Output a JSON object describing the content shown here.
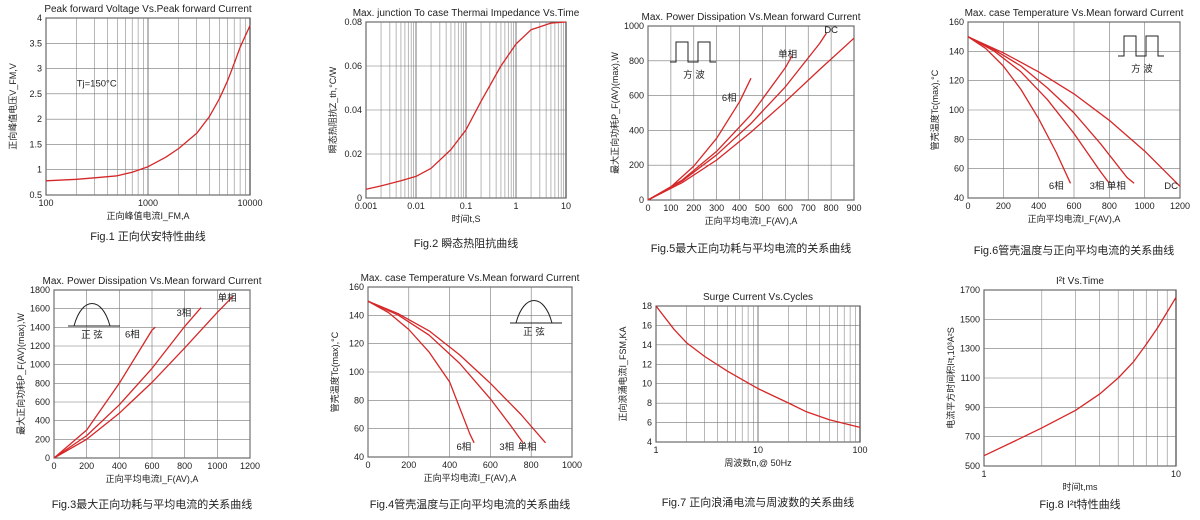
{
  "chart_data": [
    {
      "id": "fig1",
      "type": "line",
      "title": "Peak forward Voltage Vs.Peak forward Current",
      "caption": "Fig.1 正向伏安特性曲线",
      "xlabel": "正向峰值电流I_FM,A",
      "ylabel": "正向峰值电压V_FM,V",
      "xscale": "log",
      "xlim": [
        100,
        10000
      ],
      "ylim": [
        0.5,
        4
      ],
      "xticks": [
        100,
        1000,
        10000
      ],
      "yticks": [
        0.5,
        1,
        1.5,
        2,
        2.5,
        3,
        3.5,
        4
      ],
      "grid": true,
      "annotations": [
        {
          "text": "Tj=150°C",
          "x": 200,
          "y": 2.65
        }
      ],
      "series": [
        {
          "x": [
            100,
            200,
            300,
            500,
            700,
            1000,
            1500,
            2000,
            3000,
            4000,
            5000,
            6000,
            7000,
            8000,
            10000
          ],
          "y": [
            0.78,
            0.81,
            0.84,
            0.88,
            0.95,
            1.06,
            1.25,
            1.42,
            1.72,
            2.05,
            2.4,
            2.75,
            3.1,
            3.42,
            3.85
          ]
        }
      ]
    },
    {
      "id": "fig2",
      "type": "line",
      "title": "Max. junction To case Thermai Impedance Vs.Time",
      "caption": "Fig.2 瞬态热阻抗曲线",
      "xlabel": "时间t,S",
      "ylabel": "瞬态热阻抗Z_th,°C/W",
      "xscale": "log",
      "xlim": [
        0.001,
        10
      ],
      "ylim": [
        0,
        0.08
      ],
      "xticks": [
        0.001,
        0.01,
        0.1,
        1,
        10
      ],
      "yticks": [
        0,
        0.02,
        0.04,
        0.06,
        0.08
      ],
      "grid": true,
      "series": [
        {
          "x": [
            0.001,
            0.002,
            0.005,
            0.01,
            0.02,
            0.05,
            0.1,
            0.2,
            0.5,
            1,
            2,
            5,
            10
          ],
          "y": [
            0.004,
            0.0055,
            0.0078,
            0.0098,
            0.0135,
            0.022,
            0.031,
            0.044,
            0.06,
            0.07,
            0.0765,
            0.0795,
            0.08
          ]
        }
      ]
    },
    {
      "id": "fig5",
      "type": "line",
      "title": "Max. Power Dissipation Vs.Mean forward Current",
      "caption": "Fig.5最大正向功耗与平均电流的关系曲线",
      "xlabel": "正向平均电流I_F(AV),A",
      "ylabel": "最大正向功耗P_F(AV)(max),W",
      "xlim": [
        0,
        900
      ],
      "ylim": [
        0,
        1000
      ],
      "xticks": [
        0,
        100,
        200,
        300,
        400,
        500,
        600,
        700,
        800,
        900
      ],
      "yticks": [
        0,
        200,
        400,
        600,
        800,
        1000
      ],
      "grid": true,
      "inset": {
        "type": "square-wave",
        "label": "方 波"
      },
      "series": [
        {
          "name": "6相",
          "x": [
            0,
            100,
            200,
            300,
            400,
            450
          ],
          "y": [
            0,
            75,
            195,
            355,
            565,
            700
          ]
        },
        {
          "name": "单相",
          "x": [
            0,
            150,
            300,
            450,
            600,
            630
          ],
          "y": [
            0,
            115,
            280,
            490,
            760,
            830
          ]
        },
        {
          "name": "DC",
          "x": [
            0,
            150,
            300,
            450,
            600,
            750,
            780
          ],
          "y": [
            0,
            110,
            260,
            440,
            650,
            900,
            960
          ]
        },
        {
          "name": "",
          "x": [
            0,
            150,
            300,
            450,
            600,
            750,
            900
          ],
          "y": [
            0,
            100,
            230,
            390,
            565,
            750,
            930
          ]
        }
      ],
      "labels": [
        {
          "text": "6相",
          "x": 355,
          "y": 570
        },
        {
          "text": "单相",
          "x": 610,
          "y": 820
        },
        {
          "text": "DC",
          "x": 800,
          "y": 960
        }
      ]
    },
    {
      "id": "fig6",
      "type": "line",
      "title": "Max. case Temperature Vs.Mean forward Current",
      "caption": "Fig.6管壳温度与正向平均电流的关系曲线",
      "xlabel": "正向平均电流I_F(AV),A",
      "ylabel": "管壳温度Tc(max),°C",
      "xlim": [
        0,
        1200
      ],
      "ylim": [
        40,
        160
      ],
      "xticks": [
        0,
        200,
        400,
        600,
        800,
        1000,
        1200
      ],
      "yticks": [
        40,
        60,
        80,
        100,
        120,
        140,
        160
      ],
      "grid": true,
      "inset": {
        "type": "square-wave",
        "label": "方 波"
      },
      "series": [
        {
          "name": "6相",
          "x": [
            0,
            100,
            200,
            300,
            400,
            500,
            580
          ],
          "y": [
            150,
            142,
            130,
            114,
            94,
            71,
            50
          ]
        },
        {
          "name": "3相",
          "x": [
            0,
            150,
            300,
            450,
            600,
            750,
            800
          ],
          "y": [
            150,
            140,
            126,
            107,
            84,
            58,
            50
          ]
        },
        {
          "name": "单相",
          "x": [
            0,
            150,
            300,
            450,
            600,
            750,
            900,
            940
          ],
          "y": [
            150,
            141,
            130,
            115,
            98,
            77,
            54,
            50
          ]
        },
        {
          "name": "DC",
          "x": [
            0,
            200,
            400,
            600,
            800,
            1000,
            1200
          ],
          "y": [
            150,
            139,
            126,
            111,
            93,
            72,
            48
          ]
        }
      ],
      "labels": [
        {
          "text": "6相",
          "x": 500,
          "y": 46
        },
        {
          "text": "3相",
          "x": 730,
          "y": 46
        },
        {
          "text": "单相",
          "x": 840,
          "y": 46
        },
        {
          "text": "DC",
          "x": 1150,
          "y": 46
        }
      ]
    },
    {
      "id": "fig3",
      "type": "line",
      "title": "Max. Power Dissipation Vs.Mean forward Current",
      "caption": "Fig.3最大正向功耗与平均电流的关系曲线",
      "xlabel": "正向平均电流I_F(AV),A",
      "ylabel": "最大正向功耗P_F(AV)(max),W",
      "xlim": [
        0,
        1200
      ],
      "ylim": [
        0,
        1800
      ],
      "xticks": [
        0,
        200,
        400,
        600,
        800,
        1000,
        1200
      ],
      "yticks": [
        0,
        200,
        400,
        600,
        800,
        1000,
        1200,
        1400,
        1600,
        1800
      ],
      "grid": true,
      "inset": {
        "type": "half-sine",
        "label": "正 弦"
      },
      "series": [
        {
          "name": "6相",
          "x": [
            0,
            200,
            400,
            600,
            620
          ],
          "y": [
            0,
            300,
            800,
            1370,
            1400
          ]
        },
        {
          "name": "3相",
          "x": [
            0,
            200,
            400,
            600,
            800,
            900
          ],
          "y": [
            0,
            240,
            570,
            960,
            1410,
            1610
          ]
        },
        {
          "name": "单相",
          "x": [
            0,
            200,
            400,
            600,
            800,
            1000,
            1100
          ],
          "y": [
            0,
            200,
            480,
            810,
            1180,
            1560,
            1740
          ]
        }
      ],
      "labels": [
        {
          "text": "6相",
          "x": 480,
          "y": 1290
        },
        {
          "text": "3相",
          "x": 795,
          "y": 1520
        },
        {
          "text": "单相",
          "x": 1060,
          "y": 1680
        }
      ]
    },
    {
      "id": "fig4",
      "type": "line",
      "title": "Max. case Temperature Vs.Mean forward Current",
      "caption": "Fig.4管壳温度与正向平均电流的关系曲线",
      "xlabel": "正向平均电流I_F(AV),A",
      "ylabel": "管壳温度Tc(max),°C",
      "xlim": [
        0,
        1000
      ],
      "ylim": [
        40,
        160
      ],
      "xticks": [
        0,
        200,
        400,
        600,
        800,
        1000
      ],
      "yticks": [
        40,
        60,
        80,
        100,
        120,
        140,
        160
      ],
      "grid": true,
      "inset": {
        "type": "half-sine",
        "label": "正 弦"
      },
      "series": [
        {
          "name": "6相",
          "x": [
            0,
            100,
            200,
            300,
            400,
            500,
            520
          ],
          "y": [
            150,
            142,
            130,
            114,
            93,
            56,
            50
          ]
        },
        {
          "name": "3相",
          "x": [
            0,
            150,
            300,
            450,
            600,
            700,
            760
          ],
          "y": [
            150,
            140,
            126,
            106,
            81,
            62,
            50
          ]
        },
        {
          "name": "单相",
          "x": [
            0,
            150,
            300,
            450,
            600,
            750,
            870
          ],
          "y": [
            150,
            141,
            129,
            112,
            92,
            70,
            50
          ]
        }
      ],
      "labels": [
        {
          "text": "6相",
          "x": 470,
          "y": 45
        },
        {
          "text": "3相",
          "x": 680,
          "y": 45
        },
        {
          "text": "单相",
          "x": 780,
          "y": 45
        }
      ]
    },
    {
      "id": "fig7",
      "type": "line",
      "title": "Surge Current Vs.Cycles",
      "caption": "Fig.7 正向浪涌电流与周波数的关系曲线",
      "xlabel": "周波数n,@ 50Hz",
      "ylabel": "正向浪涌电流I_FSM,KA",
      "xscale": "log",
      "xlim": [
        1,
        100
      ],
      "ylim": [
        4,
        18
      ],
      "xticks": [
        1,
        10,
        100
      ],
      "yticks": [
        4,
        6,
        8,
        10,
        12,
        14,
        16,
        18
      ],
      "grid": true,
      "series": [
        {
          "x": [
            1,
            1.5,
            2,
            3,
            5,
            10,
            20,
            30,
            50,
            100
          ],
          "y": [
            18,
            15.6,
            14.2,
            12.8,
            11.3,
            9.5,
            8,
            7.1,
            6.3,
            5.5
          ]
        }
      ]
    },
    {
      "id": "fig8",
      "type": "line",
      "title": "I²t Vs.Time",
      "caption": "Fig.8 I²t特性曲线",
      "xlabel": "时间t,ms",
      "ylabel": "电流平方时间积I²t,10³A²S",
      "xscale": "log",
      "xlim": [
        1,
        10
      ],
      "ylim": [
        500,
        1700
      ],
      "xticks": [
        1,
        10
      ],
      "yticks": [
        500,
        700,
        900,
        1100,
        1300,
        1500,
        1700
      ],
      "grid": true,
      "series": [
        {
          "x": [
            1,
            1.5,
            2,
            3,
            4,
            5,
            6,
            7,
            8,
            9,
            10
          ],
          "y": [
            570,
            680,
            760,
            880,
            990,
            1100,
            1210,
            1330,
            1440,
            1550,
            1650
          ]
        }
      ]
    }
  ]
}
